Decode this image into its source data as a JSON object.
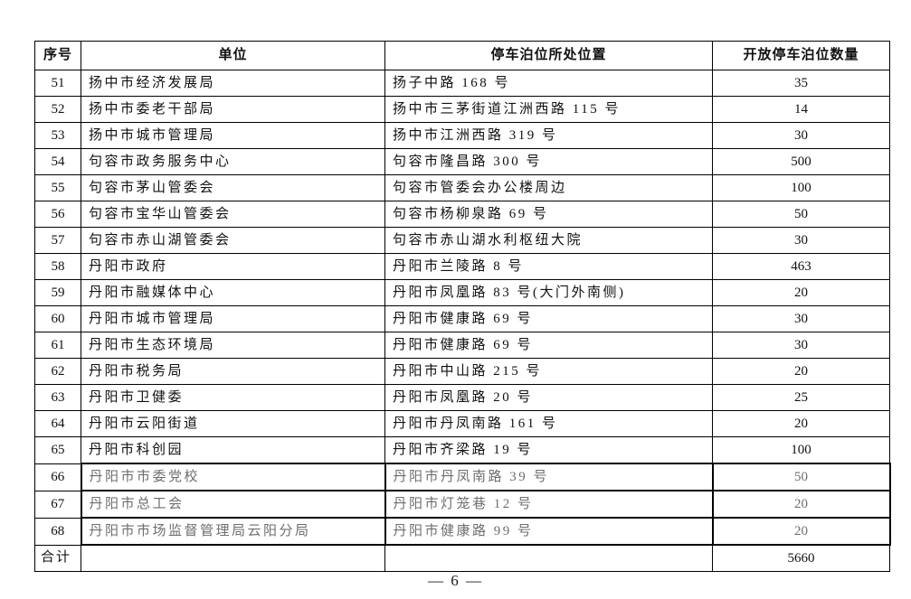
{
  "table": {
    "headers": [
      "序号",
      "单位",
      "停车泊位所处位置",
      "开放停车泊位数量"
    ],
    "rows": [
      {
        "no": "51",
        "unit": "扬中市经济发展局",
        "location": "扬子中路 168 号",
        "count": "35",
        "edited": false
      },
      {
        "no": "52",
        "unit": "扬中市委老干部局",
        "location": "扬中市三茅街道江洲西路 115 号",
        "count": "14",
        "edited": false
      },
      {
        "no": "53",
        "unit": "扬中市城市管理局",
        "location": "扬中市江洲西路 319 号",
        "count": "30",
        "edited": false
      },
      {
        "no": "54",
        "unit": "句容市政务服务中心",
        "location": "句容市隆昌路 300 号",
        "count": "500",
        "edited": false
      },
      {
        "no": "55",
        "unit": "句容市茅山管委会",
        "location": "句容市管委会办公楼周边",
        "count": "100",
        "edited": false
      },
      {
        "no": "56",
        "unit": "句容市宝华山管委会",
        "location": "句容市杨柳泉路 69 号",
        "count": "50",
        "edited": false
      },
      {
        "no": "57",
        "unit": "句容市赤山湖管委会",
        "location": "句容市赤山湖水利枢纽大院",
        "count": "30",
        "edited": false
      },
      {
        "no": "58",
        "unit": "丹阳市政府",
        "location": "丹阳市兰陵路 8 号",
        "count": "463",
        "edited": false
      },
      {
        "no": "59",
        "unit": "丹阳市融媒体中心",
        "location": "丹阳市凤凰路 83 号(大门外南侧)",
        "count": "20",
        "edited": false
      },
      {
        "no": "60",
        "unit": "丹阳市城市管理局",
        "location": "丹阳市健康路 69 号",
        "count": "30",
        "edited": false
      },
      {
        "no": "61",
        "unit": "丹阳市生态环境局",
        "location": "丹阳市健康路 69 号",
        "count": "30",
        "edited": false
      },
      {
        "no": "62",
        "unit": "丹阳市税务局",
        "location": "丹阳市中山路 215 号",
        "count": "20",
        "edited": false
      },
      {
        "no": "63",
        "unit": "丹阳市卫健委",
        "location": "丹阳市凤凰路 20 号",
        "count": "25",
        "edited": false
      },
      {
        "no": "64",
        "unit": "丹阳市云阳街道",
        "location": "丹阳市丹凤南路 161 号",
        "count": "20",
        "edited": false
      },
      {
        "no": "65",
        "unit": "丹阳市科创园",
        "location": "丹阳市齐梁路 19 号",
        "count": "100",
        "edited": false
      },
      {
        "no": "66",
        "unit": "丹阳市市委党校",
        "location": "丹阳市丹凤南路 39 号",
        "count": "50",
        "edited": true
      },
      {
        "no": "67",
        "unit": "丹阳市总工会",
        "location": "丹阳市灯笼巷 12 号",
        "count": "20",
        "edited": true
      },
      {
        "no": "68",
        "unit": "丹阳市市场监督管理局云阳分局",
        "location": "丹阳市健康路 99 号",
        "count": "20",
        "edited": true
      }
    ],
    "total_row": {
      "label": "合计",
      "unit": "",
      "location": "",
      "count": "5660"
    }
  },
  "footer": {
    "page_number": "— 6 —"
  },
  "colors": {
    "border": "#000000",
    "edited_text": "#6e6e6e",
    "text": "#111111"
  }
}
